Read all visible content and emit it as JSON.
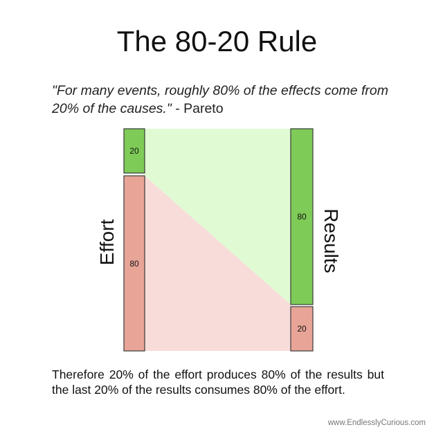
{
  "title": "The 80-20 Rule",
  "quote": {
    "text": "\"For many events, roughly 80% of the effects come from 20% of the causes.\"",
    "attribution": " - Pareto"
  },
  "diagram": {
    "left_axis_label": "Effort",
    "right_axis_label": "Results",
    "left_bars": [
      {
        "label": "20",
        "value": 20,
        "color": "#7ecb57"
      },
      {
        "label": "80",
        "value": 80,
        "color": "#e8a597"
      }
    ],
    "right_bars": [
      {
        "label": "80",
        "value": 80,
        "color": "#7ecb57"
      },
      {
        "label": "20",
        "value": 20,
        "color": "#e8a597"
      }
    ],
    "region_colors": {
      "green_light": "#e0fbd3",
      "red_light": "#f8dcd9",
      "bar_border": "#3a3a3a"
    }
  },
  "conclusion": "Therefore 20% of the effort produces 80% of the results but the last 20% of the results consumes 80% of the effort.",
  "credit": "www.EndlesslyCurious.com"
}
